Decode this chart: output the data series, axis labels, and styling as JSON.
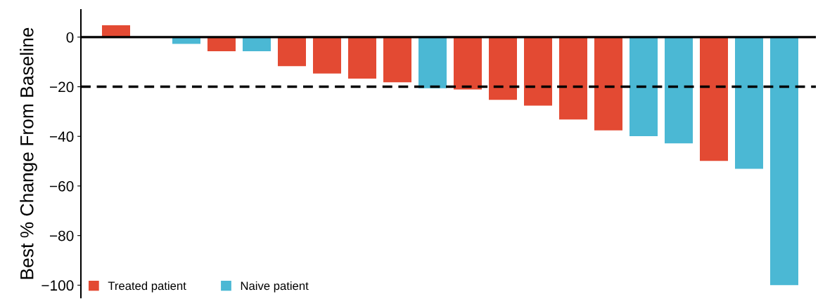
{
  "chart_data": {
    "type": "bar",
    "ylabel": "Best % Change From Baseline",
    "categories": [
      null,
      null,
      null,
      null,
      null,
      null,
      null,
      null,
      null,
      null,
      null,
      null,
      null,
      null,
      null,
      null,
      null,
      null,
      null,
      null
    ],
    "series": [
      {
        "name": "Treated patient",
        "color": "#e34a33",
        "values": [
          4.8,
          null,
          null,
          -5.7,
          null,
          -11.7,
          -14.7,
          -16.7,
          -18.2,
          null,
          -21.1,
          -25.3,
          -27.6,
          -33.2,
          -37.6,
          null,
          null,
          -49.9,
          null,
          null
        ]
      },
      {
        "name": "Naive patient",
        "color": "#4bb8d4",
        "values": [
          null,
          null,
          -2.7,
          null,
          -5.7,
          null,
          null,
          null,
          null,
          -20.6,
          null,
          null,
          null,
          null,
          null,
          -39.9,
          -42.8,
          null,
          -53.1,
          -100
        ]
      }
    ],
    "ylim": [
      -105,
      11
    ],
    "yticks": [
      {
        "value": 0,
        "label": "0"
      },
      {
        "value": -20,
        "label": "−20"
      },
      {
        "value": -40,
        "label": "−40"
      },
      {
        "value": -60,
        "label": "−60"
      },
      {
        "value": -80,
        "label": "−80"
      },
      {
        "value": -100,
        "label": "−100"
      }
    ],
    "ref_lines": [
      {
        "axis": "y",
        "value": 0,
        "color": "#000000",
        "line_style": "solid"
      },
      {
        "axis": "y",
        "value": -20,
        "color": "#000000",
        "line_style": "dashed"
      }
    ],
    "tick_labels": "y",
    "legend": "bottom left",
    "grid": false
  }
}
